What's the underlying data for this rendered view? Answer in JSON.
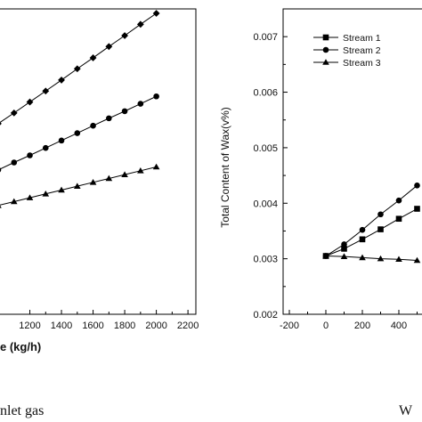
{
  "chart_data": [
    {
      "type": "line",
      "title": "",
      "xlabel": "e (kg/h)",
      "ylabel": "",
      "x_ticks": [
        "1200",
        "1400",
        "1600",
        "1800",
        "2000",
        "2200"
      ],
      "xlim": [
        1000,
        2250
      ],
      "ylim": [
        0,
        1
      ],
      "grid": false,
      "caption": "nlet gas",
      "x": [
        1000,
        1100,
        1200,
        1300,
        1400,
        1500,
        1600,
        1700,
        1800,
        1900,
        2000
      ],
      "series": [
        {
          "marker": "diamond",
          "values": [
            0.628,
            0.664,
            0.701,
            0.738,
            0.775,
            0.813,
            0.85,
            0.888,
            0.925,
            0.963,
            1.0
          ]
        },
        {
          "marker": "circle",
          "values": [
            0.472,
            0.497,
            0.521,
            0.546,
            0.571,
            0.596,
            0.621,
            0.646,
            0.67,
            0.695,
            0.72
          ]
        },
        {
          "marker": "triangle",
          "values": [
            0.352,
            0.365,
            0.378,
            0.391,
            0.404,
            0.417,
            0.43,
            0.443,
            0.456,
            0.469,
            0.482
          ]
        }
      ]
    },
    {
      "type": "line",
      "title": "",
      "xlabel": "",
      "ylabel": "Total Content of Wax(v%)",
      "x_ticks": [
        "-200",
        "0",
        "200",
        "400"
      ],
      "y_ticks": [
        "0.002",
        "0.003",
        "0.004",
        "0.005",
        "0.006",
        "0.007"
      ],
      "xlim": [
        -250,
        560
      ],
      "ylim": [
        0.002,
        0.0075
      ],
      "grid": false,
      "legend_position": "top-left",
      "caption": "W",
      "series": [
        {
          "name": "Stream 1",
          "marker": "square",
          "x": [
            0,
            100,
            200,
            300,
            400,
            500
          ],
          "values": [
            0.00305,
            0.00318,
            0.00335,
            0.00353,
            0.00372,
            0.0039
          ]
        },
        {
          "name": "Stream 2",
          "marker": "circle",
          "x": [
            0,
            100,
            200,
            300,
            400,
            500
          ],
          "values": [
            0.00305,
            0.00326,
            0.00352,
            0.0038,
            0.00405,
            0.00432
          ]
        },
        {
          "name": "Stream 3",
          "marker": "triangle",
          "x": [
            0,
            100,
            200,
            300,
            400,
            500
          ],
          "values": [
            0.00305,
            0.00304,
            0.00302,
            0.003,
            0.00299,
            0.00297
          ]
        }
      ]
    }
  ]
}
